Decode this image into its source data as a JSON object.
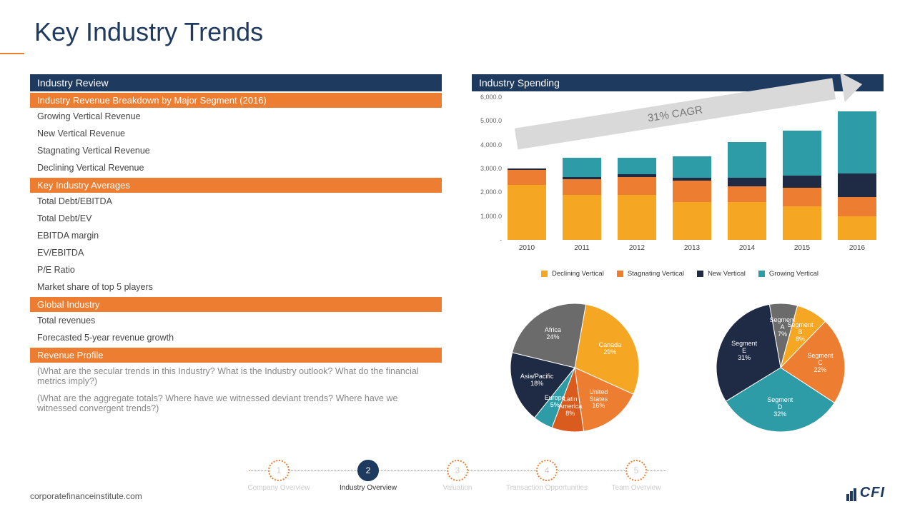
{
  "title": "Key Industry Trends",
  "left": {
    "header": "Industry Review",
    "sections": [
      {
        "title": "Industry Revenue Breakdown by Major Segment (2016)",
        "items": [
          "Growing Vertical Revenue",
          "New Vertical Revenue",
          "Stagnating Vertical Revenue",
          "Declining Vertical Revenue"
        ]
      },
      {
        "title": "Key Industry Averages",
        "items": [
          "Total Debt/EBITDA",
          "Total Debt/EV",
          "EBITDA margin",
          "EV/EBITDA",
          "P/E Ratio",
          "Market share of top 5 players"
        ]
      },
      {
        "title": "Global Industry",
        "items": [
          "Total revenues",
          "Forecasted 5-year revenue growth"
        ]
      },
      {
        "title": "Revenue Profile",
        "items": [
          "(What are the secular trends in this Industry? What is the Industry outlook? What do the financial metrics imply?)",
          "(What are the aggregate totals? Where have we witnessed deviant trends? Where have we witnessed convergent trends?)"
        ],
        "muted": true
      }
    ]
  },
  "right_header": "Industry Spending",
  "bar_chart": {
    "type": "stacked-bar",
    "cagr_label": "31% CAGR",
    "ylim": [
      0,
      6000
    ],
    "ytick_step": 1000,
    "yticks": [
      "-",
      "1,000.0",
      "2,000.0",
      "3,000.0",
      "4,000.0",
      "5,000.0",
      "6,000.0"
    ],
    "categories": [
      "2010",
      "2011",
      "2012",
      "2013",
      "2014",
      "2015",
      "2016"
    ],
    "series": [
      {
        "name": "Declining Vertical",
        "color": "#f5a623"
      },
      {
        "name": "Stagnating Vertical",
        "color": "#ed7d31"
      },
      {
        "name": "New Vertical",
        "color": "#1f2a44"
      },
      {
        "name": "Growing Vertical",
        "color": "#2e9ca6"
      }
    ],
    "data": [
      [
        2300,
        650,
        50,
        0
      ],
      [
        1900,
        650,
        100,
        800
      ],
      [
        1900,
        750,
        100,
        700
      ],
      [
        1600,
        900,
        100,
        900
      ],
      [
        1600,
        650,
        350,
        1500
      ],
      [
        1400,
        800,
        500,
        1900
      ],
      [
        1000,
        800,
        1000,
        2600
      ]
    ]
  },
  "pie1": {
    "type": "pie",
    "slices": [
      {
        "label": "Canada",
        "value": 29,
        "color": "#f5a623"
      },
      {
        "label": "United States",
        "value": 16,
        "color": "#ed7d31"
      },
      {
        "label": "Latin America",
        "value": 8,
        "color": "#d95b1e"
      },
      {
        "label": "Europe",
        "value": 5,
        "color": "#2e9ca6"
      },
      {
        "label": "Asia/Pacific",
        "value": 18,
        "color": "#1f2a44"
      },
      {
        "label": "Africa",
        "value": 24,
        "color": "#6b6b6b"
      }
    ]
  },
  "pie2": {
    "type": "pie",
    "slices": [
      {
        "label": "Segment A",
        "value": 7,
        "color": "#6b6b6b"
      },
      {
        "label": "Segment B",
        "value": 8,
        "color": "#f5a623"
      },
      {
        "label": "Segment C",
        "value": 22,
        "color": "#ed7d31"
      },
      {
        "label": "Segment D",
        "value": 32,
        "color": "#2e9ca6"
      },
      {
        "label": "Segment E",
        "value": 31,
        "color": "#1f2a44"
      }
    ]
  },
  "nav": {
    "active_index": 1,
    "steps": [
      "Company Overview",
      "Industry Overview",
      "Valuation",
      "Transaction Opportunities",
      "Team Overview"
    ]
  },
  "footer_url": "corporatefinanceinstitute.com",
  "logo_text": "CFI",
  "colors": {
    "navy": "#1f3a5f",
    "orange": "#ed7d31",
    "light_orange": "#f5a623",
    "teal": "#2e9ca6",
    "dark": "#1f2a44",
    "gray": "#6b6b6b"
  }
}
